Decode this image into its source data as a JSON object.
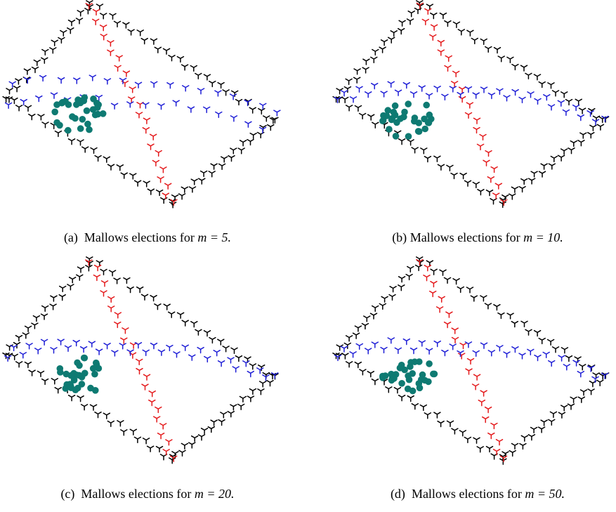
{
  "colors": {
    "border": "#000000",
    "horizontal_path": "#1f1fd6",
    "diagonal_path": "#e41a1c",
    "mallows_cluster": "#0e7a72"
  },
  "marker_shapes": {
    "path_points": "tripod (three-pronged star)",
    "mallows_points": "filled circle"
  },
  "panels": [
    {
      "id": "a",
      "label": "(a)",
      "text": "Mallows elections for",
      "math": "m = 5."
    },
    {
      "id": "b",
      "label": "(b)",
      "text": "Mallows elections for",
      "math": "m = 10."
    },
    {
      "id": "c",
      "label": "(c)",
      "text": "Mallows elections for",
      "math": "m = 20."
    },
    {
      "id": "d",
      "label": "(d)",
      "text": "Mallows elections for",
      "math": "m = 50."
    }
  ],
  "chart_data": [
    {
      "type": "scatter",
      "panel": "a",
      "m": 5,
      "series": [
        {
          "color": "#000000",
          "marker": "tripod",
          "role": "border paths"
        },
        {
          "color": "#1f1fd6",
          "marker": "tripod",
          "role": "horizontal path"
        },
        {
          "color": "#e41a1c",
          "marker": "tripod",
          "role": "diagonal path"
        },
        {
          "color": "#0e7a72",
          "marker": "circle",
          "role": "Mallows elections",
          "count": 30
        }
      ]
    },
    {
      "type": "scatter",
      "panel": "b",
      "m": 10,
      "series": [
        {
          "color": "#000000",
          "marker": "tripod",
          "role": "border paths"
        },
        {
          "color": "#1f1fd6",
          "marker": "tripod",
          "role": "horizontal path"
        },
        {
          "color": "#e41a1c",
          "marker": "tripod",
          "role": "diagonal path"
        },
        {
          "color": "#0e7a72",
          "marker": "circle",
          "role": "Mallows elections",
          "count": 30
        }
      ]
    },
    {
      "type": "scatter",
      "panel": "c",
      "m": 20,
      "series": [
        {
          "color": "#000000",
          "marker": "tripod",
          "role": "border paths"
        },
        {
          "color": "#1f1fd6",
          "marker": "tripod",
          "role": "horizontal path"
        },
        {
          "color": "#e41a1c",
          "marker": "tripod",
          "role": "diagonal path"
        },
        {
          "color": "#0e7a72",
          "marker": "circle",
          "role": "Mallows elections",
          "count": 30
        }
      ]
    },
    {
      "type": "scatter",
      "panel": "d",
      "m": 50,
      "series": [
        {
          "color": "#000000",
          "marker": "tripod",
          "role": "border paths"
        },
        {
          "color": "#1f1fd6",
          "marker": "tripod",
          "role": "horizontal path"
        },
        {
          "color": "#e41a1c",
          "marker": "tripod",
          "role": "diagonal path"
        },
        {
          "color": "#0e7a72",
          "marker": "circle",
          "role": "Mallows elections",
          "count": 30
        }
      ]
    }
  ]
}
